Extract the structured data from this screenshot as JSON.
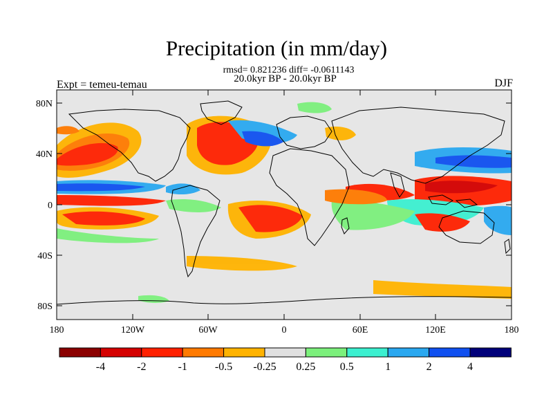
{
  "title": "Precipitation (in mm/day)",
  "stats_line": "rmsd= 0.821236 diff= -0.0611143",
  "time_line": "20.0kyr BP - 20.0kyr BP",
  "experiment": "Expt = temeu-temau",
  "season": "DJF",
  "lat_ticks": [
    "80N",
    "40N",
    "0",
    "40S",
    "80S"
  ],
  "lon_ticks": [
    "180",
    "120W",
    "60W",
    "0",
    "60E",
    "120E",
    "180"
  ],
  "colorbar": {
    "labels": [
      "-4",
      "-2",
      "-1",
      "-0.5",
      "-0.25",
      "0.25",
      "0.5",
      "1",
      "2",
      "4"
    ],
    "colors": [
      "#8b0000",
      "#d40000",
      "#ff2000",
      "#ff7a00",
      "#ffb300",
      "#e0e0e0",
      "#7cf07c",
      "#3cf0d0",
      "#2aa8f0",
      "#1050f0",
      "#00007a"
    ]
  },
  "map": {
    "background": "#e6e6e6",
    "land_outline_color": "#000000",
    "lon_range": [
      -180,
      180
    ],
    "lat_range": [
      -90,
      90
    ]
  }
}
